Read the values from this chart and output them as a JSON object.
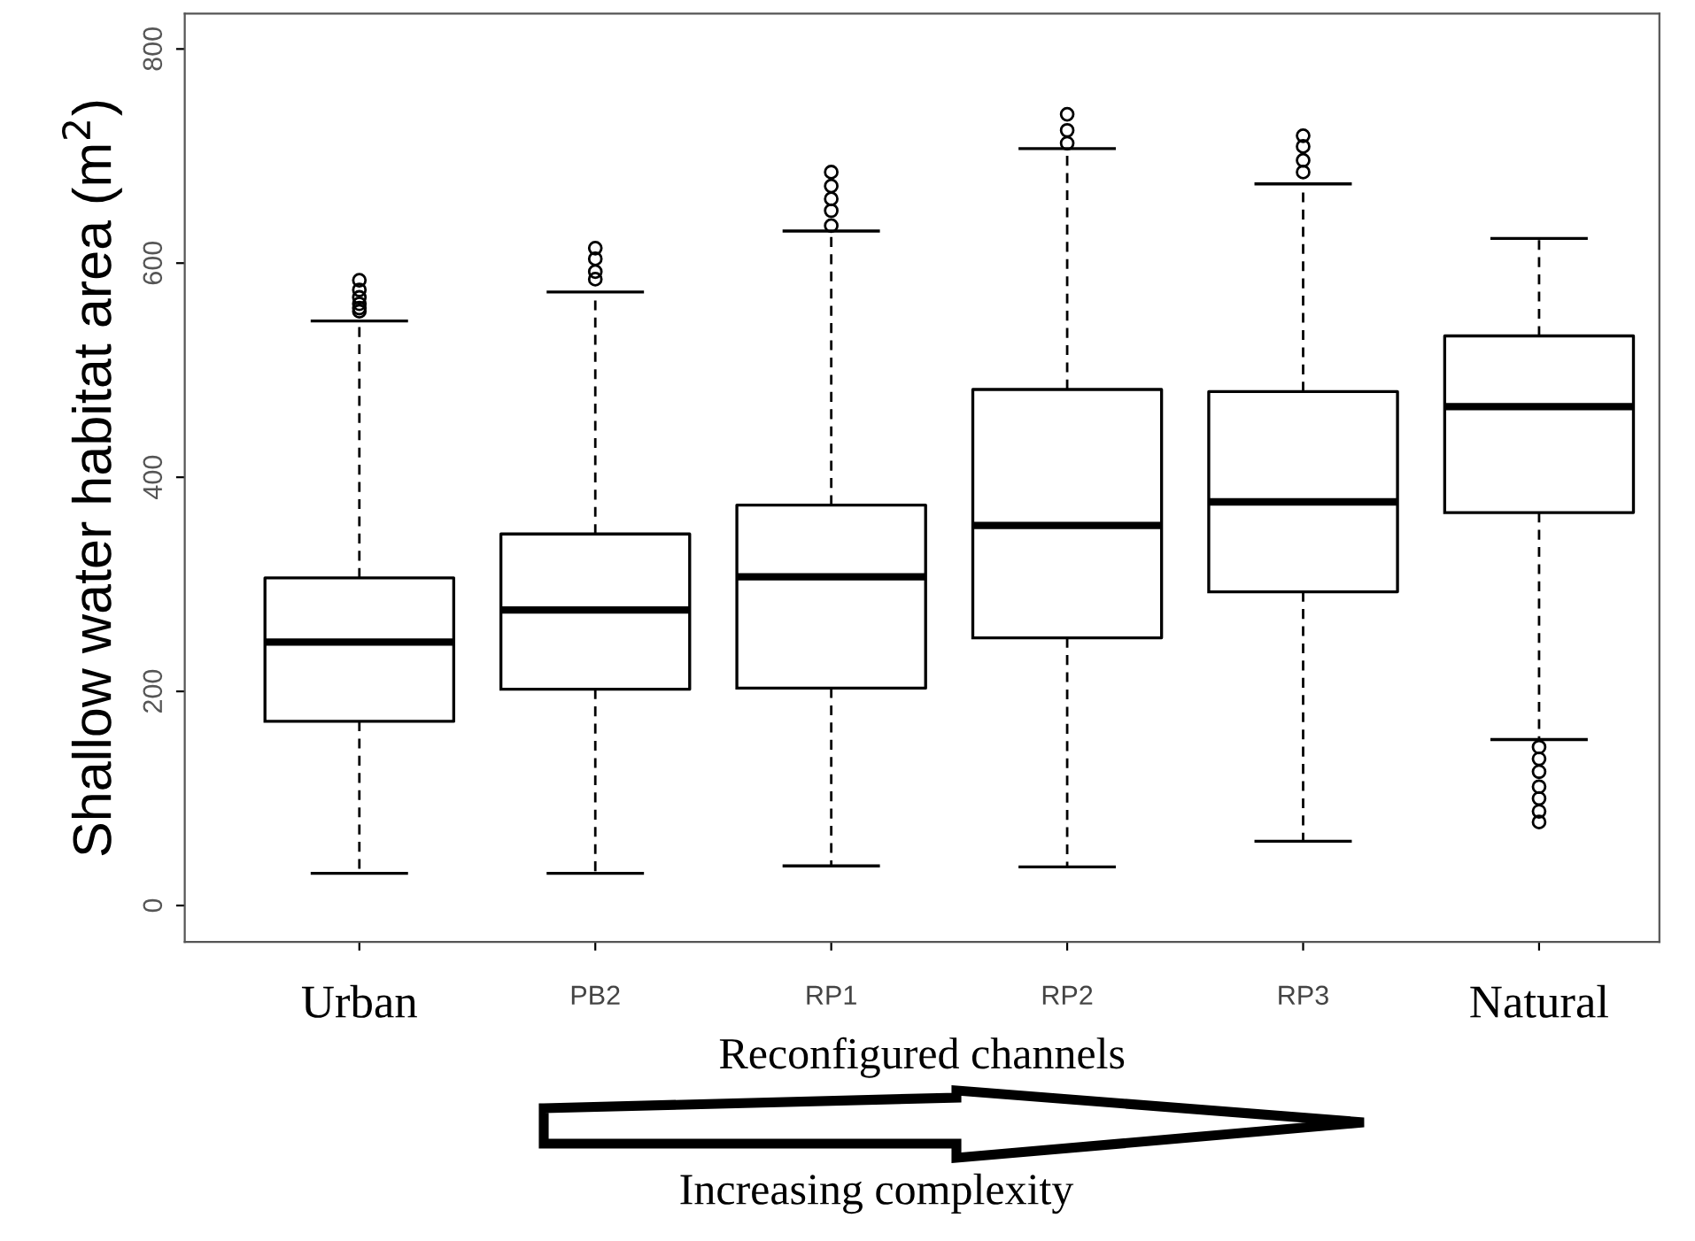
{
  "chart_data": {
    "type": "box",
    "categories": [
      "Urban",
      "PB2",
      "RP1",
      "RP2",
      "RP3",
      "Natural"
    ],
    "boxes": [
      {
        "low": 30,
        "q1": 172,
        "median": 246,
        "q3": 306,
        "high": 546,
        "outliers": [
          584,
          575,
          568,
          562,
          558,
          555
        ]
      },
      {
        "low": 30,
        "q1": 202,
        "median": 276,
        "q3": 347,
        "high": 573,
        "outliers": [
          614,
          604,
          592,
          585
        ]
      },
      {
        "low": 37,
        "q1": 203,
        "median": 307,
        "q3": 374,
        "high": 630,
        "outliers": [
          685,
          672,
          660,
          649,
          635
        ]
      },
      {
        "low": 36,
        "q1": 250,
        "median": 355,
        "q3": 482,
        "high": 707,
        "outliers": [
          739,
          724,
          712
        ]
      },
      {
        "low": 60,
        "q1": 293,
        "median": 377,
        "q3": 480,
        "high": 674,
        "outliers": [
          719,
          709,
          696,
          685
        ]
      },
      {
        "low": 155,
        "q1": 367,
        "median": 466,
        "q3": 532,
        "high": 623,
        "outliers": [
          148,
          137,
          125,
          111,
          100,
          88,
          78
        ]
      }
    ],
    "ylim": [
      -34,
      833
    ],
    "yticks": [
      0,
      200,
      400,
      600,
      800
    ],
    "xlabel": "Reconfigured channels",
    "ylabel": "Shallow water habitat area (m$^{2}$)",
    "annotations": [
      "Increasing complexity"
    ],
    "grid": false,
    "legend": false
  }
}
